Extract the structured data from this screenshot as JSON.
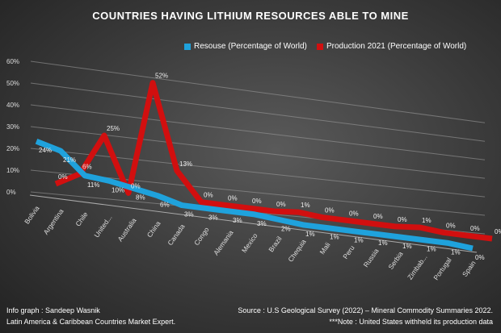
{
  "chart_data": {
    "type": "line",
    "title": "COUNTRIES HAVING LITHIUM RESOURCES ABLE TO MINE",
    "categories": [
      "Bolivia",
      "Argentina",
      "Chile",
      "United...",
      "Australia",
      "China",
      "Canada",
      "Congo",
      "Alemania",
      "Mexico",
      "Brazil",
      "Chequia",
      "Mali",
      "Peru",
      "Russia",
      "Serbia",
      "Zimbab...",
      "Portugal",
      "Spain"
    ],
    "series": [
      {
        "name": "Resouse (Percentage of World)",
        "color": "#1fa2dc",
        "values": [
          24,
          21,
          11,
          10,
          8,
          6,
          3,
          3,
          3,
          3,
          2,
          1,
          1,
          1,
          1,
          1,
          1,
          1,
          0
        ]
      },
      {
        "name": "Production 2021 (Percentage of World)",
        "color": "#d10f0f",
        "values": [
          0,
          6,
          25,
          0,
          52,
          13,
          0,
          0,
          0,
          0,
          1,
          0,
          0,
          0,
          0,
          1,
          0,
          0,
          0
        ]
      }
    ],
    "yticks": [
      "0%",
      "10%",
      "20%",
      "30%",
      "40%",
      "50%",
      "60%"
    ],
    "ylim": [
      0,
      60
    ],
    "legend": "top"
  },
  "footer": {
    "left1": "Info graph : Sandeep Wasnik",
    "left2": "Latin America & Caribbean Countries Market Expert.",
    "right1": "Source : U.S Geological Survey (2022) – Mineral Commodity Summaries 2022.",
    "right2": "***Note : United States withheld its production data"
  }
}
